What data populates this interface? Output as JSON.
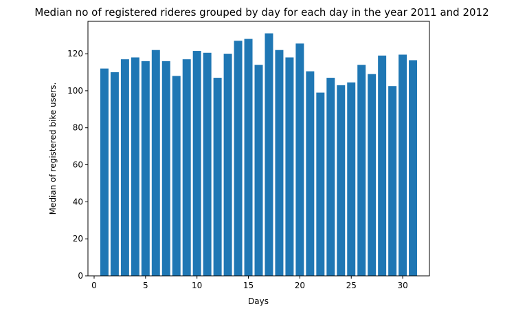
{
  "chart_data": {
    "type": "bar",
    "title": "Median no of registered rideres grouped by day for each day in the year 2011 and 2012",
    "xlabel": "Days",
    "ylabel": "Median of registered bike users.",
    "xlim": [
      -0.6,
      32.6
    ],
    "ylim": [
      0,
      137.5
    ],
    "xticks": [
      0,
      5,
      10,
      15,
      20,
      25,
      30
    ],
    "yticks": [
      0,
      20,
      40,
      60,
      80,
      100,
      120
    ],
    "grid": false,
    "bar_color": "#1f77b4",
    "categories": [
      1,
      2,
      3,
      4,
      5,
      6,
      7,
      8,
      9,
      10,
      11,
      12,
      13,
      14,
      15,
      16,
      17,
      18,
      19,
      20,
      21,
      22,
      23,
      24,
      25,
      26,
      27,
      28,
      29,
      30,
      31
    ],
    "values": [
      112,
      110,
      117,
      118,
      116,
      122,
      116,
      108,
      117,
      121.5,
      120.5,
      107,
      120,
      127,
      128,
      114,
      131,
      122,
      118,
      125.5,
      110.5,
      99,
      107,
      103,
      104.5,
      114,
      109,
      119,
      102.5,
      119.5,
      116.5
    ]
  }
}
